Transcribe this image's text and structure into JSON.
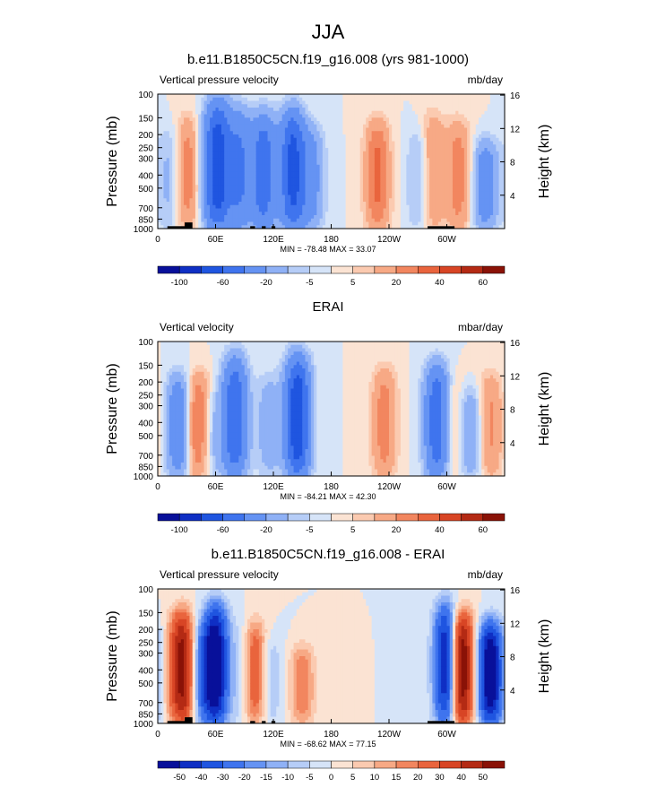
{
  "page_title": "JJA",
  "colors": {
    "blues": [
      "#08109a",
      "#0f2fc4",
      "#1f55e0",
      "#3f74ee",
      "#6593f3",
      "#8fb1f6",
      "#b6cdf7",
      "#d6e4f8"
    ],
    "reds": [
      "#fbe3d3",
      "#fbcab0",
      "#f7a985",
      "#f2865f",
      "#e9643d",
      "#d84525",
      "#b42a14",
      "#8a1207"
    ],
    "topo": "#000000"
  },
  "chart_data": [
    {
      "type": "heatmap",
      "title": "b.e11.B1850C5CN.f19_g16.008 (yrs 981-1000)",
      "left_label": "Vertical pressure velocity",
      "right_label": "mb/day",
      "ylabel": "Pressure (mb)",
      "y2label": "Height (km)",
      "x_ticks": [
        "0",
        "60E",
        "120E",
        "180",
        "120W",
        "60W"
      ],
      "x_tick_lon": [
        0,
        60,
        120,
        180,
        240,
        300
      ],
      "xlim": [
        0,
        360
      ],
      "y_ticks": [
        "100",
        "150",
        "200",
        "250",
        "300",
        "400",
        "500",
        "700",
        "850",
        "1000"
      ],
      "y_tick_p": [
        100,
        150,
        200,
        250,
        300,
        400,
        500,
        700,
        850,
        1000
      ],
      "ylim": [
        1000,
        100
      ],
      "y2_ticks": [
        "4",
        "8",
        "12",
        "16"
      ],
      "y2_tick_km": [
        4,
        8,
        12,
        16
      ],
      "stats": "MIN = -78.48  MAX = 33.07",
      "colorbar_labels": [
        "-100",
        "-60",
        "-20",
        "-5",
        "5",
        "20",
        "40",
        "60"
      ],
      "colorbar_levels": [
        -120,
        -100,
        -80,
        -60,
        -40,
        -20,
        -10,
        -5,
        0,
        5,
        10,
        20,
        30,
        40,
        50,
        60,
        70
      ],
      "features": [
        {
          "lon": 12,
          "pmin": 200,
          "value": -12
        },
        {
          "lon": 32,
          "pmin": 170,
          "value": 28
        },
        {
          "lon": 45,
          "pmin": 170,
          "value": -10
        },
        {
          "lon": 62,
          "pmin": 130,
          "value": -70
        },
        {
          "lon": 85,
          "pmin": 150,
          "value": -40
        },
        {
          "lon": 110,
          "pmin": 160,
          "value": -50
        },
        {
          "lon": 140,
          "pmin": 150,
          "value": -65
        },
        {
          "lon": 160,
          "pmin": 200,
          "value": -25
        },
        {
          "lon": 228,
          "pmin": 180,
          "value": 32
        },
        {
          "lon": 272,
          "pmin": 200,
          "value": -15
        },
        {
          "lon": 285,
          "pmin": 160,
          "value": 22
        },
        {
          "lon": 312,
          "pmin": 180,
          "value": 25
        },
        {
          "lon": 340,
          "pmin": 250,
          "value": -30
        }
      ]
    },
    {
      "type": "heatmap",
      "title": "ERAI",
      "left_label": "Vertical velocity",
      "right_label": "mbar/day",
      "ylabel": "Pressure (mb)",
      "y2label": "Height (km)",
      "x_ticks": [
        "0",
        "60E",
        "120E",
        "180",
        "120W",
        "60W"
      ],
      "x_tick_lon": [
        0,
        60,
        120,
        180,
        240,
        300
      ],
      "xlim": [
        0,
        360
      ],
      "y_ticks": [
        "100",
        "150",
        "200",
        "250",
        "300",
        "400",
        "500",
        "700",
        "850",
        "1000"
      ],
      "y_tick_p": [
        100,
        150,
        200,
        250,
        300,
        400,
        500,
        700,
        850,
        1000
      ],
      "ylim": [
        1000,
        100
      ],
      "y2_ticks": [
        "4",
        "8",
        "12",
        "16"
      ],
      "y2_tick_km": [
        4,
        8,
        12,
        16
      ],
      "stats": "MIN = -84.21  MAX = 42.30",
      "colorbar_labels": [
        "-100",
        "-60",
        "-20",
        "-5",
        "5",
        "20",
        "40",
        "60"
      ],
      "colorbar_levels": [
        -120,
        -100,
        -80,
        -60,
        -40,
        -20,
        -10,
        -5,
        0,
        5,
        10,
        20,
        30,
        40,
        50,
        60,
        70
      ],
      "features": [
        {
          "lon": 22,
          "pmin": 200,
          "value": -35
        },
        {
          "lon": 42,
          "pmin": 200,
          "value": 35
        },
        {
          "lon": 55,
          "pmin": 250,
          "value": -15
        },
        {
          "lon": 80,
          "pmin": 150,
          "value": -55
        },
        {
          "lon": 115,
          "pmin": 200,
          "value": -15
        },
        {
          "lon": 145,
          "pmin": 150,
          "value": -75
        },
        {
          "lon": 235,
          "pmin": 180,
          "value": 25
        },
        {
          "lon": 290,
          "pmin": 170,
          "value": -55
        },
        {
          "lon": 305,
          "pmin": 200,
          "value": 12
        },
        {
          "lon": 325,
          "pmin": 250,
          "value": -20
        },
        {
          "lon": 345,
          "pmin": 200,
          "value": 22
        }
      ]
    },
    {
      "type": "heatmap",
      "title": "b.e11.B1850C5CN.f19_g16.008 - ERAI",
      "left_label": "Vertical pressure velocity",
      "right_label": "mb/day",
      "ylabel": "Pressure (mb)",
      "y2label": "Height (km)",
      "x_ticks": [
        "0",
        "60E",
        "120E",
        "180",
        "120W",
        "60W"
      ],
      "x_tick_lon": [
        0,
        60,
        120,
        180,
        240,
        300
      ],
      "xlim": [
        0,
        360
      ],
      "y_ticks": [
        "100",
        "150",
        "200",
        "250",
        "300",
        "400",
        "500",
        "700",
        "850",
        "1000"
      ],
      "y_tick_p": [
        100,
        150,
        200,
        250,
        300,
        400,
        500,
        700,
        850,
        1000
      ],
      "ylim": [
        1000,
        100
      ],
      "y2_ticks": [
        "4",
        "8",
        "12",
        "16"
      ],
      "y2_tick_km": [
        4,
        8,
        12,
        16
      ],
      "stats": "MIN = -68.62  MAX = 77.15",
      "colorbar_labels": [
        "-50",
        "-40",
        "-30",
        "-20",
        "-15",
        "-10",
        "-5",
        "0",
        "5",
        "10",
        "15",
        "20",
        "30",
        "40",
        "50"
      ],
      "colorbar_levels": [
        -60,
        -50,
        -40,
        -30,
        -20,
        -15,
        -10,
        -5,
        0,
        5,
        10,
        15,
        20,
        30,
        40,
        50,
        60
      ],
      "features": [
        {
          "lon": 25,
          "pmin": 170,
          "value": 55
        },
        {
          "lon": 45,
          "pmin": 200,
          "value": -20
        },
        {
          "lon": 60,
          "pmin": 150,
          "value": -58
        },
        {
          "lon": 90,
          "pmin": 200,
          "value": -15
        },
        {
          "lon": 100,
          "pmin": 200,
          "value": 35
        },
        {
          "lon": 115,
          "pmin": 250,
          "value": -12
        },
        {
          "lon": 150,
          "pmin": 300,
          "value": 20
        },
        {
          "lon": 300,
          "pmin": 150,
          "value": -55
        },
        {
          "lon": 315,
          "pmin": 170,
          "value": 65
        },
        {
          "lon": 345,
          "pmin": 200,
          "value": -60
        }
      ]
    }
  ],
  "topography": [
    {
      "lon0": 10,
      "lon1": 35,
      "p": 960
    },
    {
      "lon0": 28,
      "lon1": 36,
      "p": 900
    },
    {
      "lon0": 96,
      "lon1": 101,
      "p": 960
    },
    {
      "lon0": 108,
      "lon1": 112,
      "p": 960
    },
    {
      "lon0": 118,
      "lon1": 122,
      "p": 960
    },
    {
      "lon0": 280,
      "lon1": 308,
      "p": 960
    }
  ]
}
